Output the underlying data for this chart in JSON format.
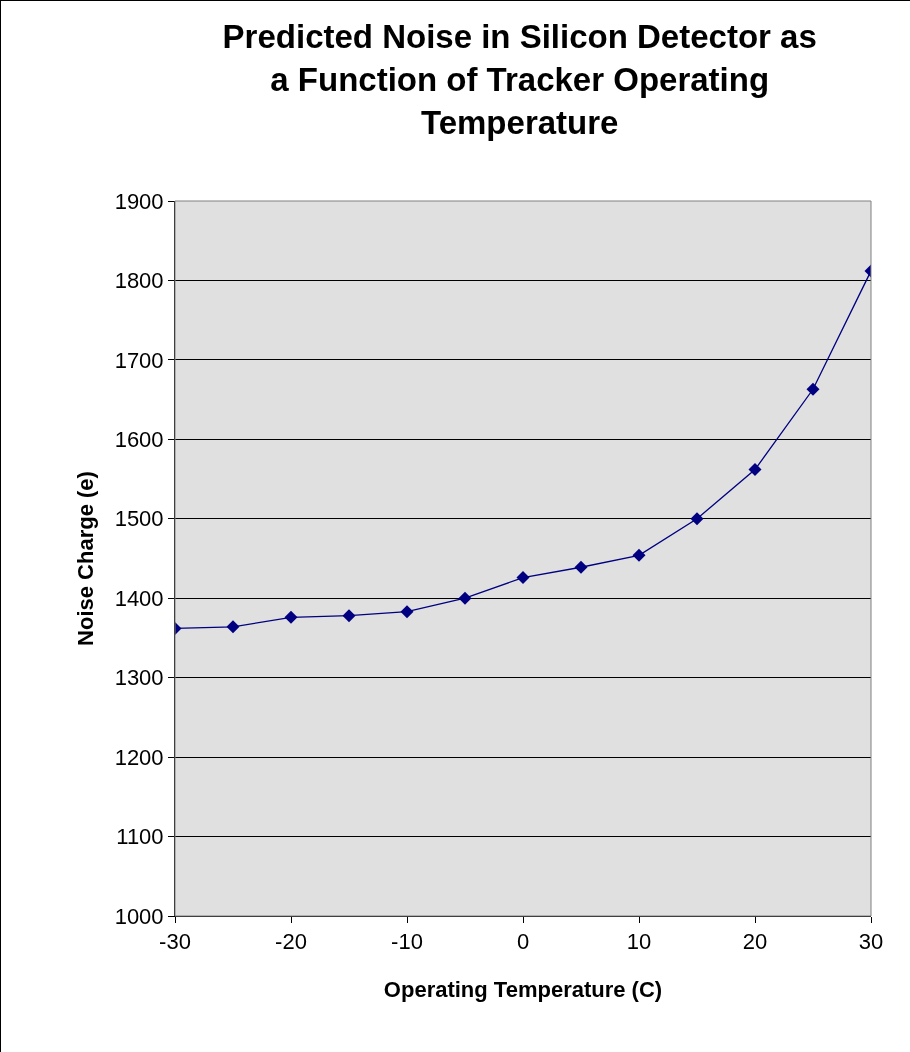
{
  "chart_data": {
    "type": "line",
    "title": "Predicted Noise in Silicon Detector as a Function of Tracker Operating Temperature",
    "xlabel": "Operating Temperature (C)",
    "ylabel": "Noise Charge (e)",
    "x": [
      -30,
      -25,
      -20,
      -15,
      -10,
      -5,
      0,
      5,
      10,
      15,
      20,
      25,
      30
    ],
    "series": [
      {
        "color": "#000080",
        "values": [
          1362,
          1364,
          1376,
          1378,
          1383,
          1400,
          1426,
          1439,
          1454,
          1500,
          1562,
          1663,
          1812
        ]
      }
    ],
    "xlim": [
      -30,
      30
    ],
    "xticks": [
      -30,
      -20,
      -10,
      0,
      10,
      20,
      30
    ],
    "ylim": [
      1000,
      1900
    ],
    "yticks": [
      1000,
      1100,
      1200,
      1300,
      1400,
      1500,
      1600,
      1700,
      1800,
      1900
    ],
    "grid": "y",
    "marker": "diamond",
    "line_style": "solid"
  }
}
